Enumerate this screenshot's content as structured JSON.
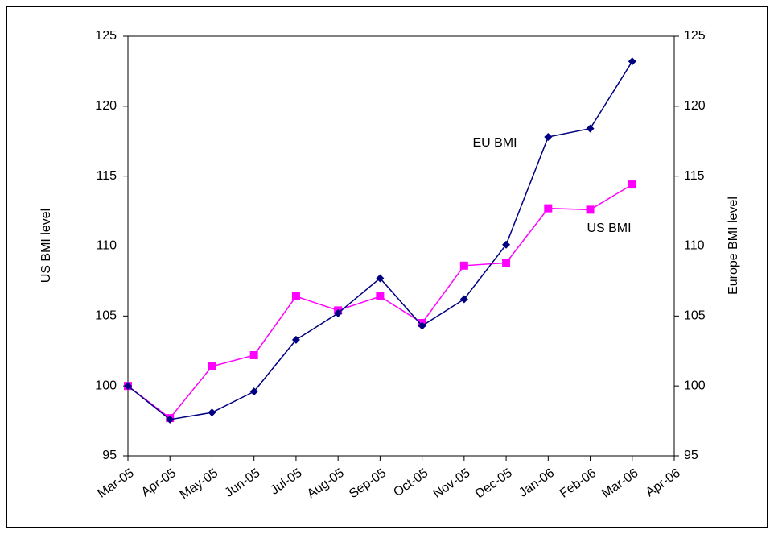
{
  "chart_data": {
    "type": "line",
    "categories": [
      "Mar-05",
      "Apr-05",
      "May-05",
      "Jun-05",
      "Jul-05",
      "Aug-05",
      "Sep-05",
      "Oct-05",
      "Nov-05",
      "Dec-05",
      "Jan-06",
      "Feb-06",
      "Mar-06",
      "Apr-06"
    ],
    "series": [
      {
        "name": "US BMI",
        "color": "#ff00ff",
        "marker": "square",
        "values": [
          100,
          97.7,
          101.4,
          102.2,
          106.4,
          105.4,
          106.4,
          104.5,
          108.6,
          108.8,
          112.7,
          112.6,
          114.4,
          null
        ]
      },
      {
        "name": "EU BMI",
        "color": "#000080",
        "marker": "diamond",
        "axis": "y2",
        "values": [
          100,
          97.6,
          98.1,
          99.6,
          103.3,
          105.2,
          107.7,
          104.3,
          106.2,
          110.1,
          117.8,
          118.4,
          123.2,
          null
        ]
      }
    ],
    "ylabel": "US BMI level",
    "y2label": "Europe BMI level",
    "ylim": [
      95,
      125
    ],
    "yticks": [
      95,
      100,
      105,
      110,
      115,
      120,
      125
    ],
    "y2lim": [
      95,
      125
    ],
    "y2ticks": [
      95,
      100,
      105,
      110,
      115,
      120,
      125
    ],
    "annotations": [
      "EU BMI",
      "US BMI"
    ],
    "grid": false
  }
}
